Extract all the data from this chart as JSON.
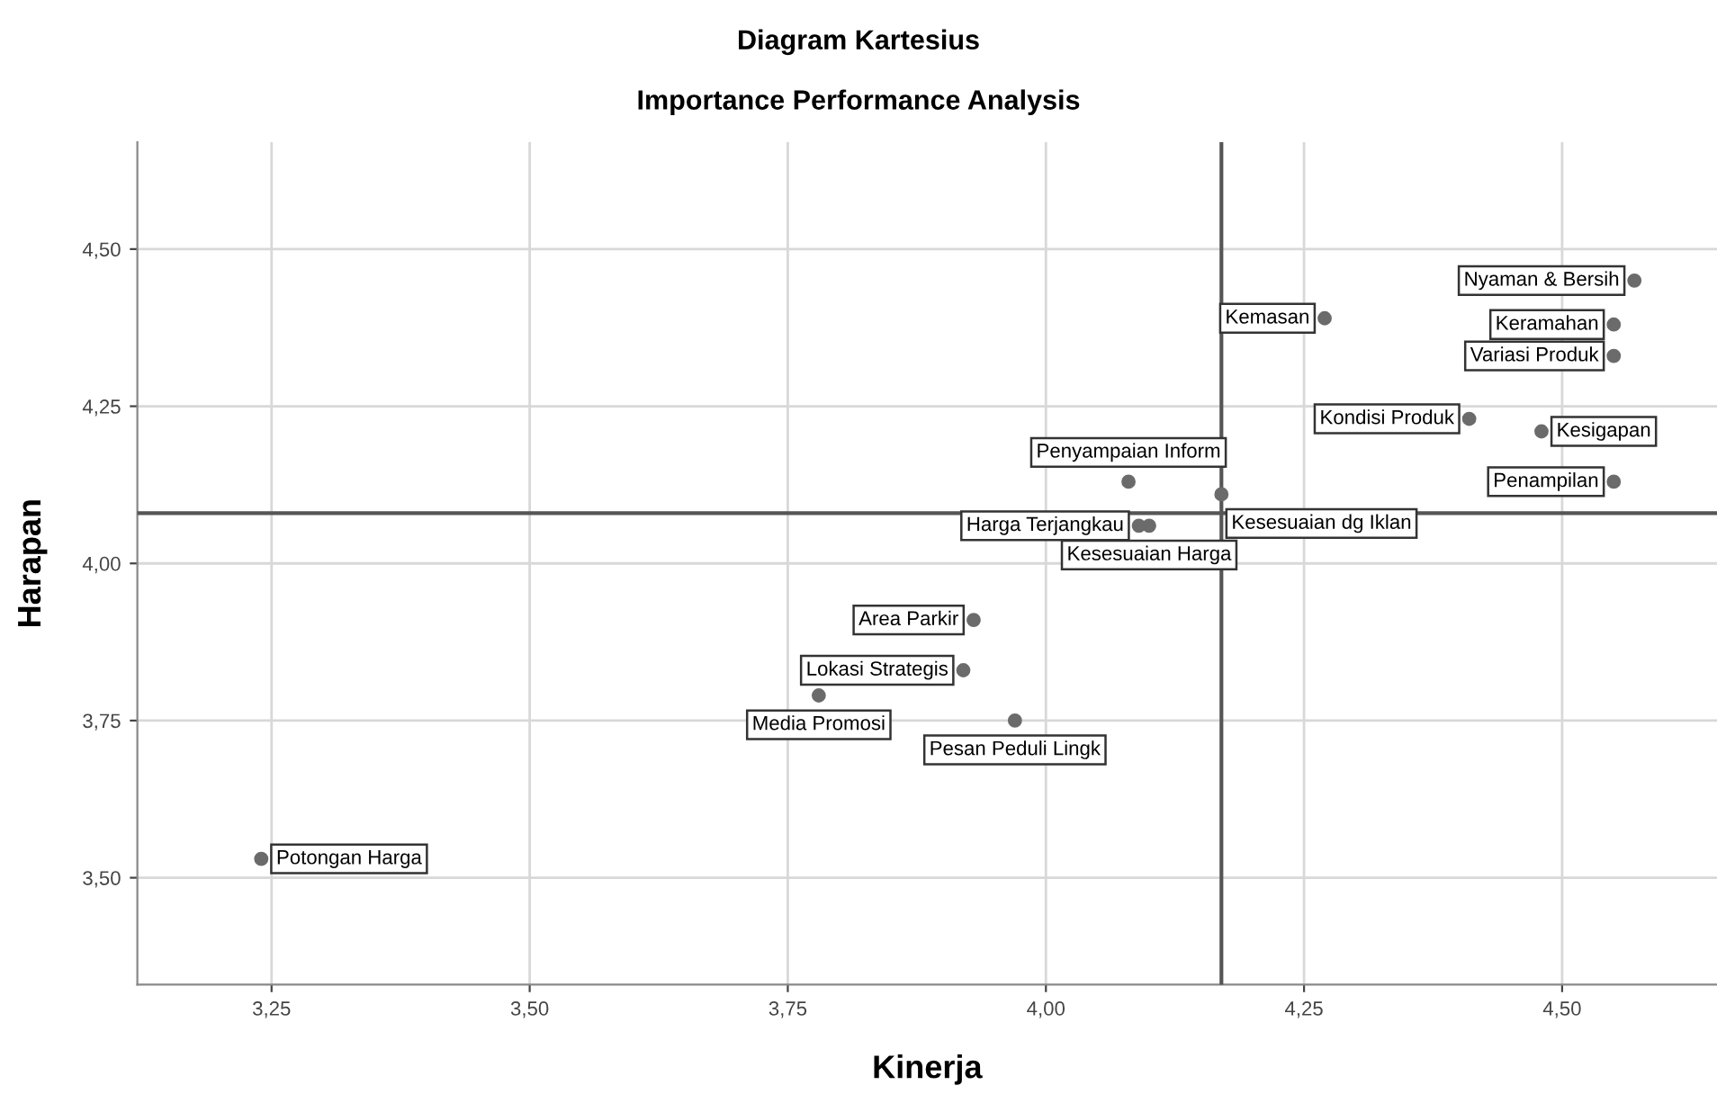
{
  "chart_data": {
    "type": "scatter",
    "title": "Diagram Kartesius",
    "subtitle": "Importance Performance Analysis",
    "xlabel": "Kinerja",
    "ylabel": "Harapan",
    "x": [
      4.57,
      4.55,
      4.27,
      4.55,
      4.41,
      4.48,
      4.55,
      4.08,
      4.17,
      4.09,
      4.1,
      3.93,
      3.92,
      3.78,
      3.97,
      3.24
    ],
    "series": [
      {
        "color": "#6b6b6b",
        "values": [
          4.45,
          4.38,
          4.39,
          4.33,
          4.23,
          4.21,
          4.13,
          4.13,
          4.11,
          4.06,
          4.06,
          3.91,
          3.83,
          3.79,
          3.75,
          3.53
        ]
      }
    ],
    "annotations": [
      {
        "text": "Nyaman & Bersih",
        "x": 4.57,
        "y": 4.45
      },
      {
        "text": "Keramahan",
        "x": 4.55,
        "y": 4.38
      },
      {
        "text": "Kemasan",
        "x": 4.27,
        "y": 4.39
      },
      {
        "text": "Variasi Produk",
        "x": 4.55,
        "y": 4.33
      },
      {
        "text": "Kondisi Produk",
        "x": 4.41,
        "y": 4.23
      },
      {
        "text": "Kesigapan",
        "x": 4.48,
        "y": 4.21
      },
      {
        "text": "Penampilan",
        "x": 4.55,
        "y": 4.13
      },
      {
        "text": "Penyampaian Inform",
        "x": 4.08,
        "y": 4.13
      },
      {
        "text": "Kesesuaian dg Iklan",
        "x": 4.17,
        "y": 4.11
      },
      {
        "text": "Harga Terjangkau",
        "x": 4.09,
        "y": 4.06
      },
      {
        "text": "Kesesuaian Harga",
        "x": 4.1,
        "y": 4.06
      },
      {
        "text": "Area Parkir",
        "x": 3.93,
        "y": 3.91
      },
      {
        "text": "Lokasi Strategis",
        "x": 3.92,
        "y": 3.83
      },
      {
        "text": "Media Promosi",
        "x": 3.78,
        "y": 3.79
      },
      {
        "text": "Pesan Peduli Lingk",
        "x": 3.97,
        "y": 3.75
      },
      {
        "text": "Potongan Harga",
        "x": 3.24,
        "y": 3.53
      }
    ],
    "ref_lines": [
      {
        "axis": "x",
        "value": 4.17,
        "color": "#555555"
      },
      {
        "axis": "y",
        "value": 4.08,
        "color": "#555555"
      }
    ],
    "xlim": [
      3.12,
      4.65
    ],
    "ylim": [
      3.33,
      4.67
    ],
    "xticks": [
      {
        "value": 3.25,
        "label": "3,25"
      },
      {
        "value": 3.5,
        "label": "3,50"
      },
      {
        "value": 3.75,
        "label": "3,75"
      },
      {
        "value": 4.0,
        "label": "4,00"
      },
      {
        "value": 4.25,
        "label": "4,25"
      },
      {
        "value": 4.5,
        "label": "4,50"
      }
    ],
    "yticks": [
      {
        "value": 3.5,
        "label": "3,50"
      },
      {
        "value": 3.75,
        "label": "3,75"
      },
      {
        "value": 4.0,
        "label": "4,00"
      },
      {
        "value": 4.25,
        "label": "4,25"
      },
      {
        "value": 4.5,
        "label": "4,50"
      }
    ],
    "grid": true,
    "marker": "circle"
  }
}
